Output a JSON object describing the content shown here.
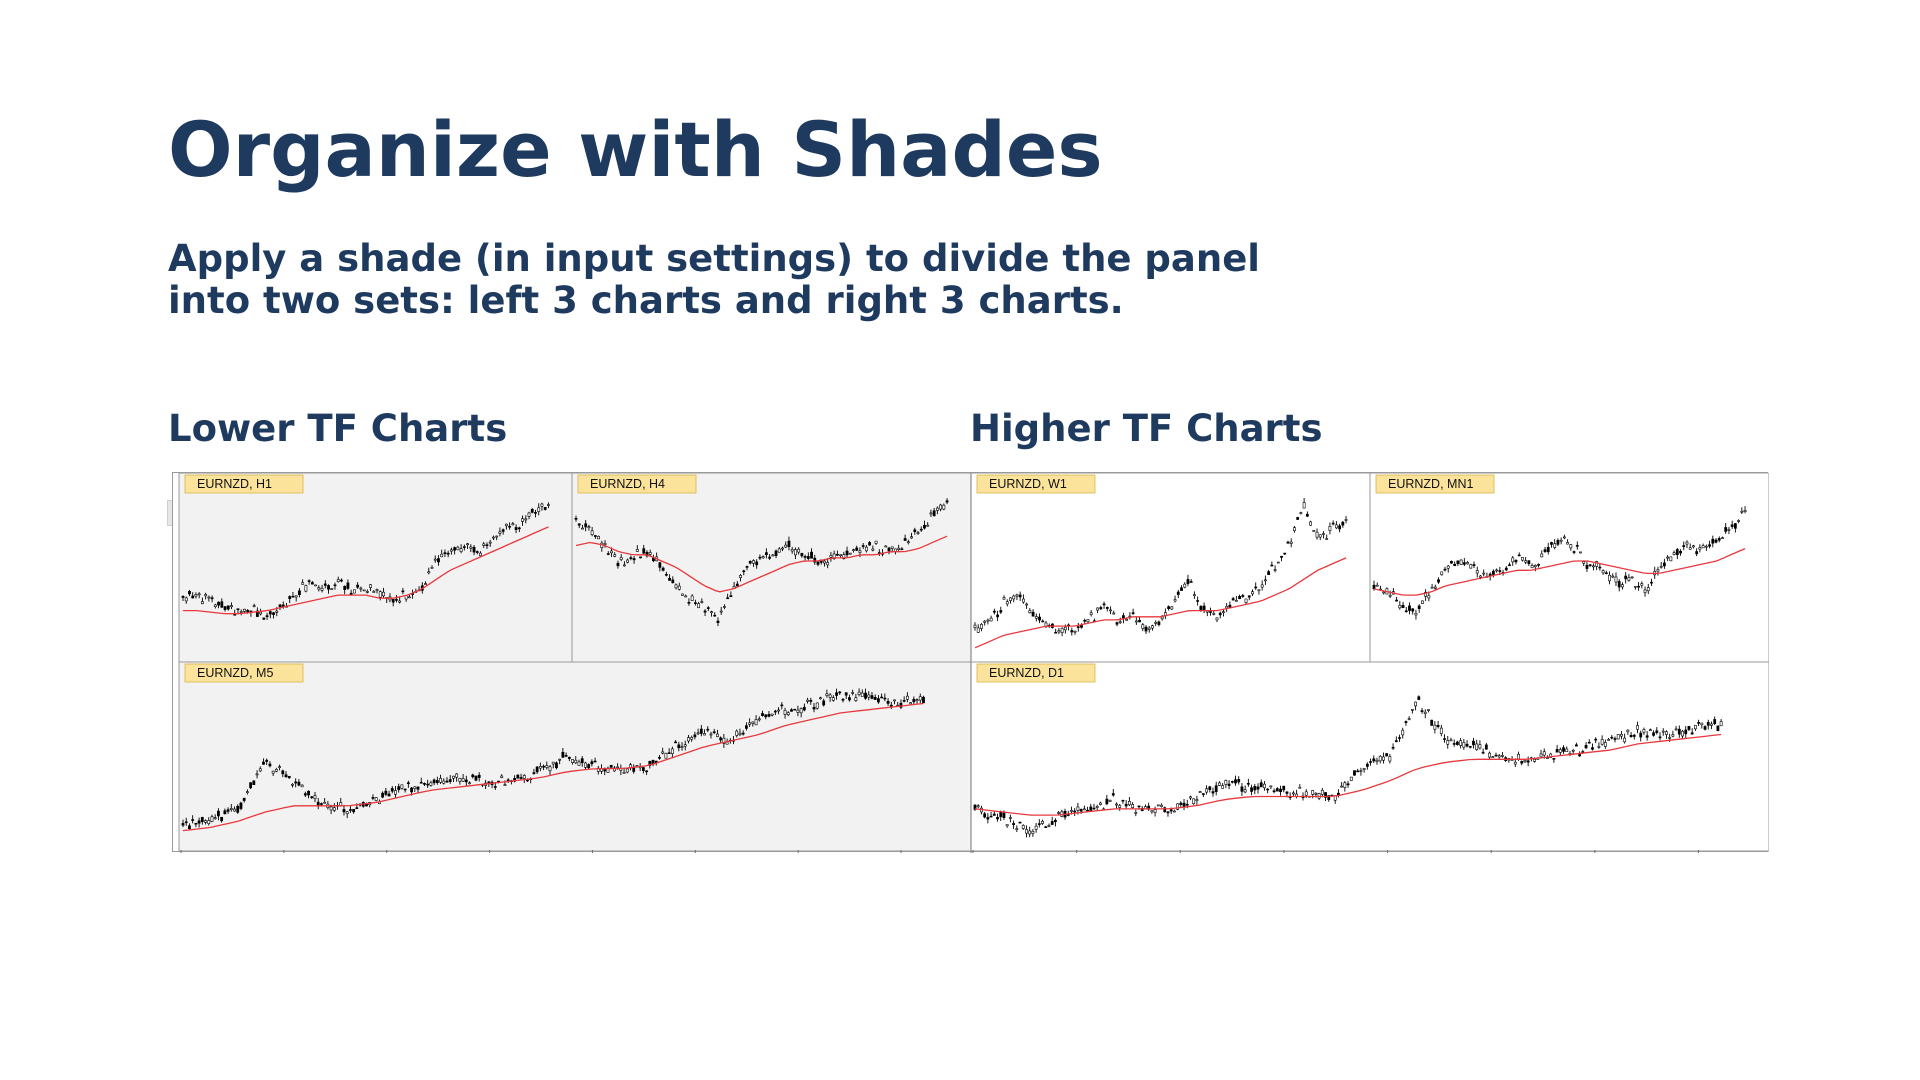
{
  "slide": {
    "title": "Organize with Shades",
    "subtitle": "Apply a shade (in input settings) to divide the panel into two sets: left 3 charts and right 3 charts.",
    "lower_label": "Lower TF Charts",
    "higher_label": "Higher TF Charts"
  },
  "colors": {
    "heading": "#1f3a5f",
    "shade": "#f2f2f2",
    "label_bg": "#fbe39b",
    "label_border": "#d9b44a",
    "candle": "#000000",
    "moving_average": "#e8383d",
    "grid_border": "#9a9a9a"
  },
  "charts": [
    {
      "label": "EURNZD, H1",
      "shaded": true,
      "seed": 11,
      "prices": [
        36,
        38,
        34,
        30,
        26,
        28,
        24,
        30,
        40,
        44,
        42,
        46,
        40,
        44,
        38,
        36,
        38,
        42,
        58,
        68,
        70,
        66,
        74,
        80,
        84,
        92,
        96
      ],
      "ma": [
        28,
        28,
        27,
        26,
        26,
        27,
        28,
        30,
        32,
        34,
        36,
        38,
        38,
        38,
        36,
        36,
        38,
        42,
        48,
        54,
        58,
        62,
        66,
        70,
        74,
        78,
        82
      ]
    },
    {
      "label": "EURNZD, H4",
      "shaded": true,
      "seed": 23,
      "prices": [
        84,
        80,
        70,
        58,
        62,
        66,
        56,
        44,
        36,
        30,
        24,
        40,
        56,
        62,
        66,
        70,
        64,
        60,
        62,
        66,
        68,
        70,
        66,
        72,
        80,
        90,
        96
      ],
      "ma": [
        70,
        72,
        70,
        66,
        64,
        64,
        60,
        56,
        50,
        44,
        40,
        42,
        46,
        50,
        54,
        58,
        60,
        60,
        62,
        62,
        64,
        64,
        66,
        66,
        68,
        72,
        76
      ]
    },
    {
      "label": "EURNZD, M5",
      "shaded": true,
      "seed": 37,
      "prices": [
        10,
        14,
        22,
        52,
        40,
        26,
        22,
        28,
        34,
        38,
        42,
        40,
        40,
        46,
        56,
        50,
        46,
        50,
        62,
        72,
        66,
        80,
        86,
        90,
        96,
        94,
        90,
        92
      ],
      "ma": [
        8,
        10,
        14,
        20,
        24,
        24,
        24,
        26,
        30,
        34,
        36,
        38,
        40,
        42,
        46,
        48,
        48,
        50,
        56,
        62,
        66,
        70,
        76,
        80,
        84,
        86,
        88,
        90
      ]
    },
    {
      "label": "EURNZD, W1",
      "shaded": false,
      "seed": 41,
      "prices": [
        16,
        22,
        32,
        38,
        26,
        18,
        14,
        16,
        22,
        30,
        20,
        26,
        18,
        20,
        34,
        46,
        28,
        22,
        32,
        36,
        44,
        56,
        70,
        96,
        74,
        80,
        86
      ],
      "ma": [
        4,
        8,
        12,
        14,
        16,
        18,
        18,
        18,
        20,
        22,
        22,
        24,
        24,
        24,
        26,
        28,
        28,
        28,
        30,
        32,
        34,
        38,
        42,
        48,
        54,
        58,
        62
      ]
    },
    {
      "label": "EURNZD, MN1",
      "shaded": false,
      "seed": 53,
      "prices": [
        46,
        40,
        30,
        26,
        42,
        54,
        60,
        56,
        50,
        54,
        62,
        56,
        66,
        74,
        70,
        58,
        54,
        46,
        48,
        42,
        56,
        66,
        70,
        68,
        74,
        82,
        90
      ],
      "ma": [
        42,
        40,
        38,
        38,
        40,
        44,
        46,
        48,
        50,
        52,
        54,
        54,
        56,
        58,
        60,
        60,
        58,
        56,
        54,
        52,
        52,
        54,
        56,
        58,
        60,
        64,
        68
      ]
    },
    {
      "label": "EURNZD, D1",
      "shaded": false,
      "seed": 67,
      "prices": [
        22,
        16,
        8,
        18,
        22,
        28,
        22,
        20,
        30,
        38,
        36,
        34,
        32,
        30,
        48,
        56,
        92,
        68,
        62,
        56,
        54,
        58,
        60,
        66,
        72,
        70,
        74,
        76
      ],
      "ma": [
        22,
        20,
        18,
        18,
        20,
        22,
        22,
        22,
        24,
        28,
        30,
        30,
        30,
        30,
        34,
        40,
        48,
        52,
        54,
        54,
        54,
        56,
        58,
        60,
        64,
        66,
        68,
        70
      ]
    }
  ]
}
